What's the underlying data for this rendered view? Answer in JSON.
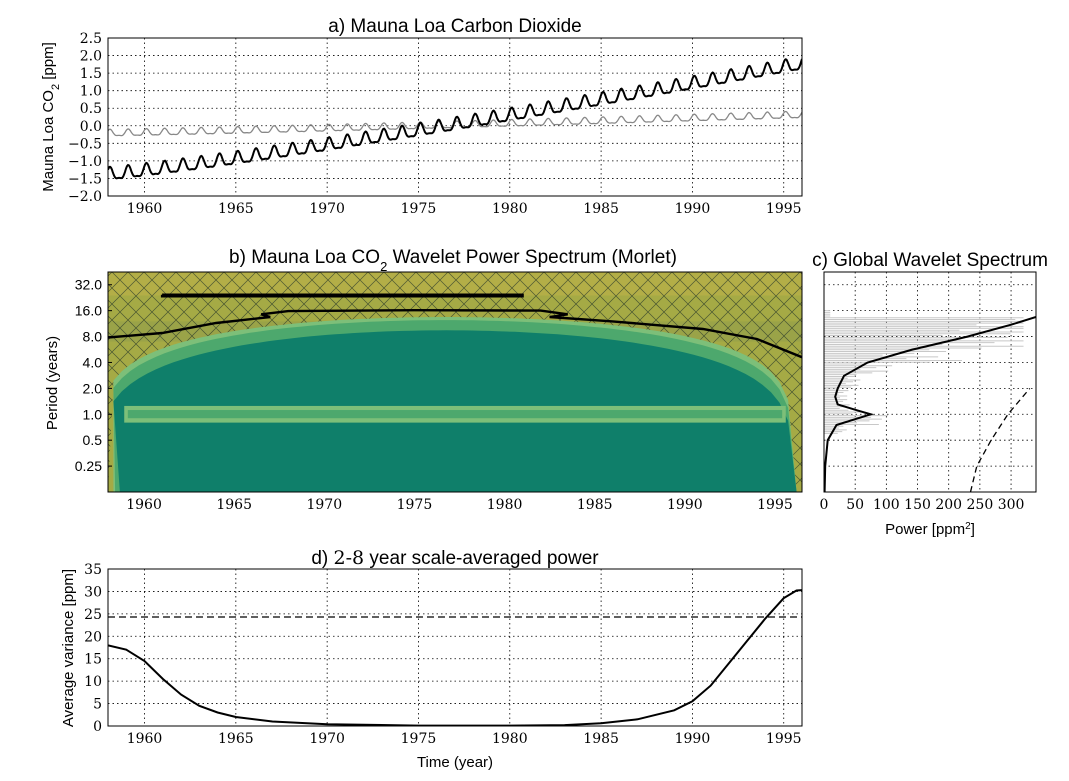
{
  "chart_data": [
    {
      "panel": "a",
      "type": "line",
      "title": "a) Mauna Loa Carbon Dioxide",
      "ylabel_main": "Mauna Loa CO",
      "ylabel_sub": "2",
      "ylabel_unit": " [ppm]",
      "xlim": [
        1958,
        1996
      ],
      "ylim": [
        -2.0,
        2.5
      ],
      "xticks": [
        "1960",
        "1965",
        "1970",
        "1975",
        "1980",
        "1985",
        "1990",
        "1995"
      ],
      "yticks": [
        "−2.0",
        "−1.5",
        "−1.0",
        "−0.5",
        "0.0",
        "0.5",
        "1.0",
        "1.5",
        "2.0",
        "2.5"
      ],
      "series": [
        {
          "style": "normalized record",
          "color": "#000000",
          "trend_start": -1.4,
          "trend_end": 1.75,
          "seasonal_amplitude": 0.17
        },
        {
          "style": "detrended record",
          "color": "#888888",
          "trend_start": -0.22,
          "trend_end": 0.3,
          "seasonal_amplitude": 0.09
        }
      ]
    },
    {
      "panel": "b",
      "type": "heatmap",
      "title_pre": "b) Mauna Loa CO",
      "title_sub": "2",
      "title_post": " Wavelet Power Spectrum (Morlet)",
      "ylabel": "Period (years)",
      "xlim": [
        1958,
        1996.5
      ],
      "period_range": [
        0.125,
        45
      ],
      "xticks": [
        "1960",
        "1965",
        "1970",
        "1975",
        "1980",
        "1985",
        "1990",
        "1995"
      ],
      "yticks": [
        {
          "period": 32,
          "label": "32.0"
        },
        {
          "period": 16,
          "label": "16.0"
        },
        {
          "period": 8,
          "label": "8.0"
        },
        {
          "period": 4,
          "label": "4.0"
        },
        {
          "period": 2,
          "label": "2.0"
        },
        {
          "period": 1,
          "label": "1.0"
        },
        {
          "period": 0.5,
          "label": "0.5"
        },
        {
          "period": 0.25,
          "label": "0.25"
        }
      ],
      "colors": {
        "low": "#0f7f6a",
        "mid": "#4da86d",
        "band": "#7dbf79",
        "high": "#a5aa45",
        "top": "#b3ae47"
      },
      "annual_band_period": 1.0,
      "cone_peak_period": 13.5
    },
    {
      "panel": "c",
      "type": "line",
      "title": "c) Global Wavelet Spectrum",
      "xlabel_main": "Power [ppm",
      "xlabel_sup": "2",
      "xlabel_end": "]",
      "xlim": [
        0,
        340
      ],
      "xticks": [
        "0",
        "50",
        "100",
        "150",
        "200",
        "250",
        "300"
      ],
      "global_spectrum": [
        {
          "period": 0.125,
          "power": 1
        },
        {
          "period": 0.25,
          "power": 2
        },
        {
          "period": 0.5,
          "power": 6
        },
        {
          "period": 0.75,
          "power": 20
        },
        {
          "period": 0.9,
          "power": 55
        },
        {
          "period": 1.0,
          "power": 75
        },
        {
          "period": 1.1,
          "power": 55
        },
        {
          "period": 1.3,
          "power": 22
        },
        {
          "period": 1.6,
          "power": 18
        },
        {
          "period": 2.0,
          "power": 22
        },
        {
          "period": 2.8,
          "power": 32
        },
        {
          "period": 4.0,
          "power": 70
        },
        {
          "period": 5.6,
          "power": 140
        },
        {
          "period": 8.0,
          "power": 230
        },
        {
          "period": 11.0,
          "power": 300
        },
        {
          "period": 13.5,
          "power": 340
        }
      ],
      "significance": [
        {
          "period": 0.125,
          "power": 235
        },
        {
          "period": 0.25,
          "power": 245
        },
        {
          "period": 0.5,
          "power": 268
        },
        {
          "period": 1.0,
          "power": 295
        },
        {
          "period": 2.0,
          "power": 330
        }
      ]
    },
    {
      "panel": "d",
      "type": "line",
      "title_pre": "d) ",
      "title_math": "2-8",
      "title_post": " year scale-averaged power",
      "xlabel": "Time (year)",
      "ylabel": "Average variance [ppm]",
      "xlim": [
        1958,
        1996
      ],
      "ylim": [
        0,
        35
      ],
      "xticks": [
        "1960",
        "1965",
        "1970",
        "1975",
        "1980",
        "1985",
        "1990",
        "1995"
      ],
      "yticks": [
        "0",
        "5",
        "10",
        "15",
        "20",
        "25",
        "30",
        "35"
      ],
      "significance_level": 24.3,
      "series": [
        {
          "points": [
            [
              1958,
              18
            ],
            [
              1959,
              17
            ],
            [
              1960,
              14.5
            ],
            [
              1961,
              10.5
            ],
            [
              1962,
              7
            ],
            [
              1963,
              4.5
            ],
            [
              1964,
              3
            ],
            [
              1965,
              2
            ],
            [
              1967,
              1
            ],
            [
              1970,
              0.4
            ],
            [
              1975,
              0.1
            ],
            [
              1980,
              0.1
            ],
            [
              1983,
              0.2
            ],
            [
              1985,
              0.6
            ],
            [
              1987,
              1.5
            ],
            [
              1988,
              2.5
            ],
            [
              1989,
              3.5
            ],
            [
              1990,
              5.5
            ],
            [
              1991,
              9
            ],
            [
              1992,
              14
            ],
            [
              1993,
              19
            ],
            [
              1994,
              24
            ],
            [
              1995,
              28.5
            ],
            [
              1995.7,
              30.2
            ],
            [
              1996,
              30.3
            ]
          ]
        }
      ]
    }
  ]
}
